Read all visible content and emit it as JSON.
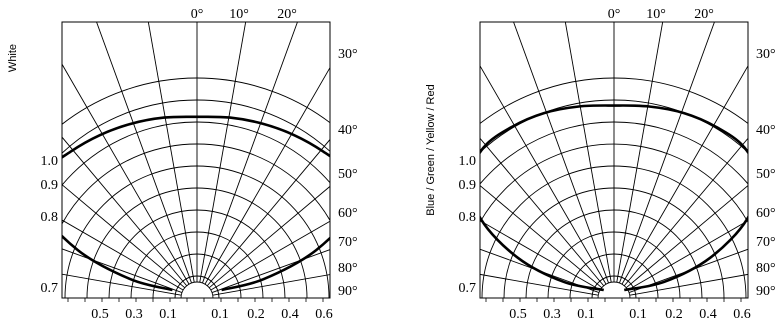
{
  "chart_data": [
    {
      "type": "polar",
      "ylabel": "White",
      "angle_ticks_top": [
        "0°",
        "10°",
        "20°"
      ],
      "angle_ticks_right": [
        "30°",
        "40°",
        "50°",
        "60°",
        "70°",
        "80°",
        "90°"
      ],
      "radius_ticks_left": [
        "1.0",
        "0.9",
        "0.8",
        "0.7"
      ],
      "bottom_ticks": [
        "0.5",
        "0.3",
        "0.1",
        "0.1",
        "0.2",
        "0.4",
        "0.6"
      ],
      "series": [
        {
          "angles": [
            -90,
            -80,
            -70,
            -60,
            -50,
            -40,
            -30,
            -20,
            -10,
            0,
            10,
            20,
            30,
            40,
            50,
            60,
            70,
            80,
            90
          ],
          "values": [
            0.12,
            0.33,
            0.62,
            0.9,
            0.97,
            0.96,
            0.95,
            0.94,
            0.93,
            0.92,
            0.93,
            0.94,
            0.95,
            0.96,
            0.97,
            0.9,
            0.62,
            0.33,
            0.12
          ]
        }
      ]
    },
    {
      "type": "polar",
      "ylabel": "Blue / Green / Yellow / Red",
      "angle_ticks_top": [
        "0°",
        "10°",
        "20°"
      ],
      "angle_ticks_right": [
        "30°",
        "40°",
        "50°",
        "60°",
        "70°",
        "80°",
        "90°"
      ],
      "radius_ticks_left": [
        "1.0",
        "0.9",
        "0.8",
        "0.7"
      ],
      "bottom_ticks": [
        "0.5",
        "0.3",
        "0.1",
        "0.1",
        "0.2",
        "0.4",
        "0.6"
      ],
      "series": [
        {
          "angles": [
            -90,
            -80,
            -70,
            -60,
            -50,
            -40,
            -30,
            -20,
            -10,
            0,
            10,
            20,
            30,
            40,
            50,
            60,
            70,
            80,
            90
          ],
          "values": [
            0.05,
            0.25,
            0.5,
            0.75,
            0.92,
            0.99,
            1.0,
            1.0,
            0.99,
            0.98,
            0.99,
            1.0,
            1.0,
            0.99,
            0.92,
            0.75,
            0.5,
            0.25,
            0.05
          ]
        }
      ]
    }
  ]
}
